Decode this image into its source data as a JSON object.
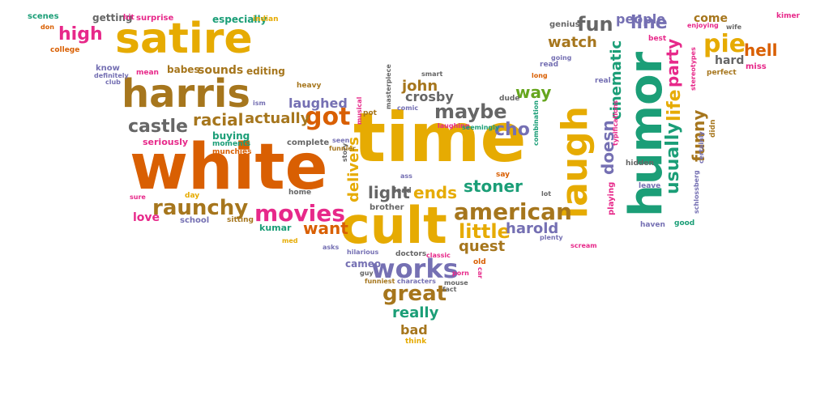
{
  "palette": {
    "orange": "#d95f02",
    "gold": "#e6ab02",
    "teal": "#1b9e77",
    "purple": "#7570b3",
    "magenta": "#e7298a",
    "olive": "#a6761d",
    "gray": "#666666",
    "green": "#66a61e"
  },
  "words": [
    {
      "text": "white",
      "color": "#d95f02"
    },
    {
      "text": "time",
      "color": "#e6ab02"
    },
    {
      "text": "cult",
      "color": "#e6ab02"
    },
    {
      "text": "satire",
      "color": "#e6ab02"
    },
    {
      "text": "harris",
      "color": "#a6761d"
    },
    {
      "text": "humor",
      "color": "#1b9e77"
    },
    {
      "text": "laugh",
      "color": "#e6ab02"
    },
    {
      "text": "american",
      "color": "#a6761d"
    },
    {
      "text": "works",
      "color": "#7570b3"
    },
    {
      "text": "movies",
      "color": "#e7298a"
    },
    {
      "text": "raunchy",
      "color": "#a6761d"
    },
    {
      "text": "got",
      "color": "#d95f02"
    },
    {
      "text": "maybe",
      "color": "#666666"
    },
    {
      "text": "great",
      "color": "#a6761d"
    },
    {
      "text": "pie",
      "color": "#e6ab02"
    },
    {
      "text": "fun",
      "color": "#666666"
    },
    {
      "text": "castle",
      "color": "#666666"
    },
    {
      "text": "racial",
      "color": "#a6761d"
    },
    {
      "text": "actually",
      "color": "#a6761d"
    },
    {
      "text": "high",
      "color": "#e7298a"
    },
    {
      "text": "little",
      "color": "#e6ab02"
    },
    {
      "text": "stoner",
      "color": "#1b9e77"
    },
    {
      "text": "light",
      "color": "#666666"
    },
    {
      "text": "ends",
      "color": "#e6ab02"
    },
    {
      "text": "way",
      "color": "#66a61e"
    },
    {
      "text": "watch",
      "color": "#a6761d"
    },
    {
      "text": "want",
      "color": "#d95f02"
    },
    {
      "text": "really",
      "color": "#1b9e77"
    },
    {
      "text": "john",
      "color": "#a6761d"
    },
    {
      "text": "crosby",
      "color": "#666666"
    },
    {
      "text": "cho",
      "color": "#7570b3"
    },
    {
      "text": "delivers",
      "color": "#e6ab02"
    },
    {
      "text": "harold",
      "color": "#7570b3"
    },
    {
      "text": "quest",
      "color": "#a6761d"
    },
    {
      "text": "usually",
      "color": "#1b9e77"
    },
    {
      "text": "life",
      "color": "#e6ab02"
    },
    {
      "text": "funny",
      "color": "#a6761d"
    },
    {
      "text": "party",
      "color": "#e7298a"
    },
    {
      "text": "line",
      "color": "#7570b3"
    },
    {
      "text": "doesn",
      "color": "#7570b3"
    },
    {
      "text": "cinematic",
      "color": "#1b9e77"
    },
    {
      "text": "people",
      "color": "#7570b3"
    },
    {
      "text": "come",
      "color": "#a6761d"
    },
    {
      "text": "hell",
      "color": "#d95f02"
    },
    {
      "text": "hard",
      "color": "#666666"
    },
    {
      "text": "laughed",
      "color": "#7570b3"
    },
    {
      "text": "bad",
      "color": "#a6761d"
    },
    {
      "text": "love",
      "color": "#e7298a"
    },
    {
      "text": "sounds",
      "color": "#a6761d"
    },
    {
      "text": "babes",
      "color": "#a6761d"
    },
    {
      "text": "editing",
      "color": "#a6761d"
    },
    {
      "text": "especially",
      "color": "#1b9e77"
    },
    {
      "text": "indian",
      "color": "#e6ab02"
    },
    {
      "text": "getting",
      "color": "#666666"
    },
    {
      "text": "hit",
      "color": "#e7298a"
    },
    {
      "text": "surprise",
      "color": "#e7298a"
    },
    {
      "text": "scenes",
      "color": "#1b9e77"
    },
    {
      "text": "don",
      "color": "#d95f02"
    },
    {
      "text": "genius",
      "color": "#666666"
    },
    {
      "text": "best",
      "color": "#e7298a"
    },
    {
      "text": "enjoying",
      "color": "#e7298a"
    },
    {
      "text": "wife",
      "color": "#666666"
    },
    {
      "text": "miss",
      "color": "#e7298a"
    },
    {
      "text": "kimer",
      "color": "#e7298a"
    },
    {
      "text": "perfect",
      "color": "#a6761d"
    },
    {
      "text": "know",
      "color": "#7570b3"
    },
    {
      "text": "college",
      "color": "#d95f02"
    },
    {
      "text": "definitely",
      "color": "#7570b3"
    },
    {
      "text": "club",
      "color": "#7570b3"
    },
    {
      "text": "mean",
      "color": "#e7298a"
    },
    {
      "text": "heavy",
      "color": "#a6761d"
    },
    {
      "text": "ism",
      "color": "#7570b3"
    },
    {
      "text": "buying",
      "color": "#1b9e77"
    },
    {
      "text": "moments",
      "color": "#1b9e77"
    },
    {
      "text": "munchies",
      "color": "#d95f02"
    },
    {
      "text": "seriously",
      "color": "#e7298a"
    },
    {
      "text": "complete",
      "color": "#666666"
    },
    {
      "text": "day",
      "color": "#e6ab02"
    },
    {
      "text": "sure",
      "color": "#e7298a"
    },
    {
      "text": "school",
      "color": "#7570b3"
    },
    {
      "text": "sitting",
      "color": "#a6761d"
    },
    {
      "text": "kumar",
      "color": "#1b9e77"
    },
    {
      "text": "home",
      "color": "#666666"
    },
    {
      "text": "med",
      "color": "#e6ab02"
    },
    {
      "text": "asks",
      "color": "#7570b3"
    },
    {
      "text": "brother",
      "color": "#666666"
    },
    {
      "text": "hilarious",
      "color": "#7570b3"
    },
    {
      "text": "doctors",
      "color": "#666666"
    },
    {
      "text": "cameo",
      "color": "#7570b3"
    },
    {
      "text": "classic",
      "color": "#e7298a"
    },
    {
      "text": "guy",
      "color": "#666666"
    },
    {
      "text": "funniest",
      "color": "#a6761d"
    },
    {
      "text": "characters",
      "color": "#7570b3"
    },
    {
      "text": "mouse",
      "color": "#666666"
    },
    {
      "text": "fact",
      "color": "#666666"
    },
    {
      "text": "old",
      "color": "#d95f02"
    },
    {
      "text": "think",
      "color": "#e6ab02"
    },
    {
      "text": "masterpiece",
      "color": "#666666"
    },
    {
      "text": "comic",
      "color": "#7570b3"
    },
    {
      "text": "smart",
      "color": "#666666"
    },
    {
      "text": "pot",
      "color": "#a6761d"
    },
    {
      "text": "musical",
      "color": "#e7298a"
    },
    {
      "text": "laughing",
      "color": "#e7298a"
    },
    {
      "text": "seemingly",
      "color": "#1b9e77"
    },
    {
      "text": "dude",
      "color": "#666666"
    },
    {
      "text": "ass",
      "color": "#7570b3"
    },
    {
      "text": "lead",
      "color": "#666666"
    },
    {
      "text": "story",
      "color": "#666666"
    },
    {
      "text": "seen",
      "color": "#7570b3"
    },
    {
      "text": "funnier",
      "color": "#a6761d"
    },
    {
      "text": "combination",
      "color": "#1b9e77"
    },
    {
      "text": "say",
      "color": "#d95f02"
    },
    {
      "text": "lot",
      "color": "#666666"
    },
    {
      "text": "porn",
      "color": "#e7298a"
    },
    {
      "text": "plenty",
      "color": "#7570b3"
    },
    {
      "text": "scream",
      "color": "#e7298a"
    },
    {
      "text": "car",
      "color": "#e7298a"
    },
    {
      "text": "read",
      "color": "#7570b3"
    },
    {
      "text": "going",
      "color": "#7570b3"
    },
    {
      "text": "long",
      "color": "#d95f02"
    },
    {
      "text": "real",
      "color": "#7570b3"
    },
    {
      "text": "typifications",
      "color": "#e7298a"
    },
    {
      "text": "hidden",
      "color": "#666666"
    },
    {
      "text": "leave",
      "color": "#7570b3"
    },
    {
      "text": "playing",
      "color": "#e7298a"
    },
    {
      "text": "haven",
      "color": "#7570b3"
    },
    {
      "text": "stereotypes",
      "color": "#e7298a"
    },
    {
      "text": "certainly",
      "color": "#7570b3"
    },
    {
      "text": "didn",
      "color": "#a6761d"
    },
    {
      "text": "schlossberg",
      "color": "#7570b3"
    },
    {
      "text": "good",
      "color": "#1b9e77"
    }
  ]
}
